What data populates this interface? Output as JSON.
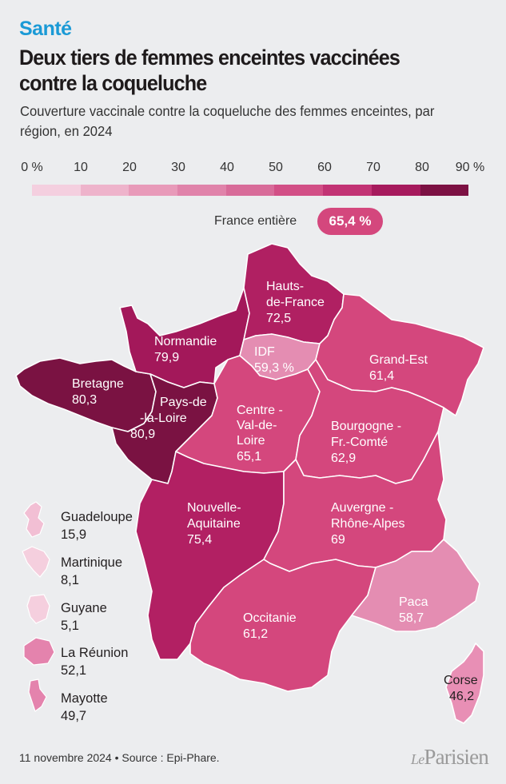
{
  "header": {
    "kicker": "Santé",
    "title": "Deux tiers de femmes enceintes vaccinées contre la coqueluche",
    "subtitle": "Couverture vaccinale contre la coqueluche des femmes enceintes, par région, en 2024"
  },
  "legend": {
    "ticks": [
      "0 %",
      "10",
      "20",
      "30",
      "40",
      "50",
      "60",
      "70",
      "80",
      "90 %"
    ],
    "colors": [
      "#f4cfdf",
      "#eeb3cb",
      "#e89ab9",
      "#e083aa",
      "#d86b99",
      "#d24f86",
      "#c23374",
      "#a61a5d",
      "#7c1143"
    ]
  },
  "national": {
    "label": "France entière",
    "value": "65,4 %",
    "color": "#d4477d"
  },
  "chart_data": {
    "type": "choropleth",
    "unit": "%",
    "regions": [
      {
        "name": "Hauts-de-France",
        "value": 72.5,
        "display": "72,5",
        "color": "#b02062"
      },
      {
        "name": "Normandie",
        "value": 79.9,
        "display": "79,9",
        "color": "#a3185a"
      },
      {
        "name": "IDF",
        "value": 59.3,
        "display": "59,3 %",
        "color": "#e48db2"
      },
      {
        "name": "Grand-Est",
        "value": 61.4,
        "display": "61,4",
        "color": "#d4477d"
      },
      {
        "name": "Bretagne",
        "value": 80.3,
        "display": "80,3",
        "color": "#7a1242"
      },
      {
        "name": "Pays-de-la-Loire",
        "value": 80.9,
        "display": "80,9",
        "color": "#7a1242"
      },
      {
        "name": "Centre-Val-de-Loire",
        "value": 65.1,
        "display": "65,1",
        "color": "#d4477d"
      },
      {
        "name": "Bourgogne-Fr.-Comté",
        "value": 62.9,
        "display": "62,9",
        "color": "#d4477d"
      },
      {
        "name": "Nouvelle-Aquitaine",
        "value": 75.4,
        "display": "75,4",
        "color": "#b22063"
      },
      {
        "name": "Auvergne-Rhône-Alpes",
        "value": 69,
        "display": "69",
        "color": "#d4477d"
      },
      {
        "name": "Occitanie",
        "value": 61.2,
        "display": "61,2",
        "color": "#d4477d"
      },
      {
        "name": "Paca",
        "value": 58.7,
        "display": "58,7",
        "color": "#e48db2"
      },
      {
        "name": "Corse",
        "value": 46.2,
        "display": "46,2",
        "color": "#e88fb5"
      },
      {
        "name": "Guadeloupe",
        "value": 15.9,
        "display": "15,9",
        "color": "#f2bfd4"
      },
      {
        "name": "Martinique",
        "value": 8.1,
        "display": "8,1",
        "color": "#f5cfde"
      },
      {
        "name": "Guyane",
        "value": 5.1,
        "display": "5,1",
        "color": "#f5cfde"
      },
      {
        "name": "La Réunion",
        "value": 52.1,
        "display": "52,1",
        "color": "#e483ad"
      },
      {
        "name": "Mayotte",
        "value": 49.7,
        "display": "49,7",
        "color": "#e483ad"
      }
    ]
  },
  "map_labels": {
    "hdf": [
      "Hauts-",
      "de-France",
      "72,5"
    ],
    "normandie": [
      "Normandie",
      "79,9"
    ],
    "idf": [
      "IDF",
      "59,3 %"
    ],
    "grandest": [
      "Grand-Est",
      "61,4"
    ],
    "bretagne": [
      "Bretagne",
      "80,3"
    ],
    "pdl": [
      "Pays-de",
      "-la-Loire",
      "80,9"
    ],
    "centre": [
      "Centre -",
      "Val-de-",
      "Loire",
      "65,1"
    ],
    "bfc": [
      "Bourgogne -",
      "Fr.-Comté",
      "62,9"
    ],
    "na": [
      "Nouvelle-",
      "Aquitaine",
      "75,4"
    ],
    "ara": [
      "Auvergne -",
      "Rhône-Alpes",
      "69"
    ],
    "occitanie": [
      "Occitanie",
      "61,2"
    ],
    "paca": [
      "Paca",
      "58,7"
    ],
    "corse": [
      "Corse",
      "46,2"
    ]
  },
  "dom": [
    {
      "name": "Guadeloupe",
      "value": "15,9"
    },
    {
      "name": "Martinique",
      "value": "8,1"
    },
    {
      "name": "Guyane",
      "value": "5,1"
    },
    {
      "name": "La Réunion",
      "value": "52,1"
    },
    {
      "name": "Mayotte",
      "value": "49,7"
    }
  ],
  "footer": {
    "text": "11 novembre 2024 • Source : Epi-Phare.",
    "logo_le": "Le",
    "logo_name": "Parisien"
  }
}
